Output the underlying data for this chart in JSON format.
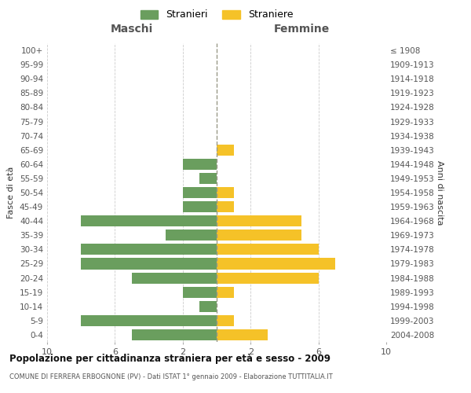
{
  "age_groups": [
    "0-4",
    "5-9",
    "10-14",
    "15-19",
    "20-24",
    "25-29",
    "30-34",
    "35-39",
    "40-44",
    "45-49",
    "50-54",
    "55-59",
    "60-64",
    "65-69",
    "70-74",
    "75-79",
    "80-84",
    "85-89",
    "90-94",
    "95-99",
    "100+"
  ],
  "birth_years": [
    "2004-2008",
    "1999-2003",
    "1994-1998",
    "1989-1993",
    "1984-1988",
    "1979-1983",
    "1974-1978",
    "1969-1973",
    "1964-1968",
    "1959-1963",
    "1954-1958",
    "1949-1953",
    "1944-1948",
    "1939-1943",
    "1934-1938",
    "1929-1933",
    "1924-1928",
    "1919-1923",
    "1914-1918",
    "1909-1913",
    "≤ 1908"
  ],
  "males": [
    5,
    8,
    1,
    2,
    5,
    8,
    8,
    3,
    8,
    2,
    2,
    1,
    2,
    0,
    0,
    0,
    0,
    0,
    0,
    0,
    0
  ],
  "females": [
    3,
    1,
    0,
    1,
    6,
    7,
    6,
    5,
    5,
    1,
    1,
    0,
    0,
    1,
    0,
    0,
    0,
    0,
    0,
    0,
    0
  ],
  "male_color": "#6a9e5e",
  "female_color": "#f5c228",
  "center_line_color": "#999988",
  "grid_color": "#cccccc",
  "background_color": "#ffffff",
  "title": "Popolazione per cittadinanza straniera per età e sesso - 2009",
  "subtitle": "COMUNE DI FERRERA ERBOGNONE (PV) - Dati ISTAT 1° gennaio 2009 - Elaborazione TUTTITALIA.IT",
  "legend_stranieri": "Stranieri",
  "legend_straniere": "Straniere",
  "xlabel_left": "Maschi",
  "xlabel_right": "Femmine",
  "ylabel_left": "Fasce di età",
  "ylabel_right": "Anni di nascita",
  "xlim": 10
}
